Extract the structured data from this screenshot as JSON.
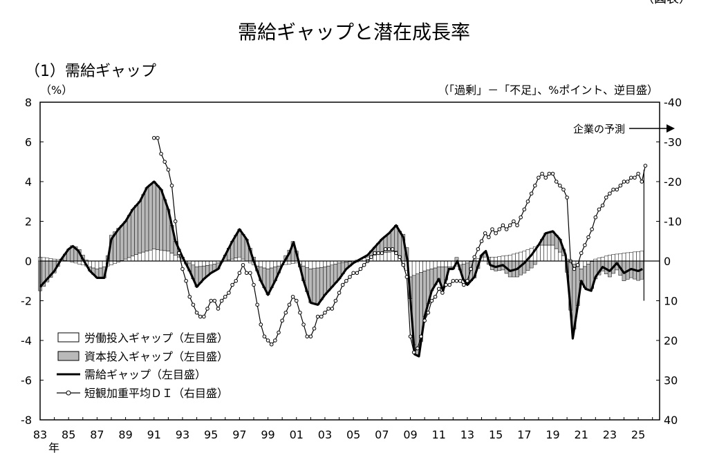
{
  "corner_label": "（図表）",
  "title": "需給ギャップと潜在成長率",
  "chart_data": {
    "type": "bar",
    "panel_title": "（1）需給ギャップ",
    "left_unit": "（%）",
    "right_unit": "（「過剰」－「不足」、%ポイント、逆目盛）",
    "forecast_note": "企業の予測",
    "year_suffix": "年",
    "xlim": [
      1983,
      2026.5
    ],
    "ylim_left": [
      -8,
      8
    ],
    "ylim_right": [
      -40,
      40
    ],
    "right_axis_inverted": true,
    "yticks_left": [
      "8",
      "6",
      "4",
      "2",
      "0",
      "-2",
      "-4",
      "-6",
      "-8"
    ],
    "yticks_right": [
      "-40",
      "-30",
      "-20",
      "-10",
      "0",
      "10",
      "20",
      "30",
      "40"
    ],
    "xtick_labels": [
      "83",
      "85",
      "87",
      "89",
      "91",
      "93",
      "95",
      "97",
      "99",
      "01",
      "03",
      "05",
      "07",
      "09",
      "11",
      "13",
      "15",
      "17",
      "19",
      "21",
      "23",
      "25"
    ],
    "legend": [
      {
        "label": "労働投入ギャップ（左目盛）",
        "kind": "bar-white"
      },
      {
        "label": "資本投入ギャップ（左目盛）",
        "kind": "bar-gray"
      },
      {
        "label": "需給ギャップ（左目盛）",
        "kind": "line-thick"
      },
      {
        "label": "短観加重平均ＤＩ（右目盛）",
        "kind": "line-marker"
      }
    ],
    "colors": {
      "labor": "#ffffff",
      "capital": "#b9b9b9",
      "line": "#000000"
    },
    "gap_knots": [
      [
        1983,
        -1.3
      ],
      [
        1983.5,
        -0.9
      ],
      [
        1984,
        -0.5
      ],
      [
        1984.5,
        0.1
      ],
      [
        1985,
        0.6
      ],
      [
        1985.3,
        0.75
      ],
      [
        1985.7,
        0.5
      ],
      [
        1986,
        0.1
      ],
      [
        1986.5,
        -0.5
      ],
      [
        1987,
        -0.85
      ],
      [
        1987.5,
        -0.85
      ],
      [
        1987.7,
        -0.2
      ],
      [
        1988,
        1.1
      ],
      [
        1988.5,
        1.6
      ],
      [
        1989,
        2.0
      ],
      [
        1989.5,
        2.6
      ],
      [
        1990,
        3.0
      ],
      [
        1990.5,
        3.7
      ],
      [
        1991,
        4.0
      ],
      [
        1991.5,
        3.6
      ],
      [
        1992,
        2.6
      ],
      [
        1992.5,
        1.0
      ],
      [
        1993,
        0.2
      ],
      [
        1993.5,
        -0.5
      ],
      [
        1994,
        -1.3
      ],
      [
        1994.5,
        -0.9
      ],
      [
        1995,
        -0.6
      ],
      [
        1995.5,
        -0.4
      ],
      [
        1996,
        0.3
      ],
      [
        1996.5,
        1.0
      ],
      [
        1997,
        1.6
      ],
      [
        1997.5,
        1.1
      ],
      [
        1998,
        0.0
      ],
      [
        1998.5,
        -1.0
      ],
      [
        1999,
        -1.7
      ],
      [
        1999.5,
        -1.0
      ],
      [
        2000,
        -0.2
      ],
      [
        2000.5,
        0.4
      ],
      [
        2000.8,
        0.95
      ],
      [
        2001,
        0.4
      ],
      [
        2001.5,
        -1.0
      ],
      [
        2002,
        -2.1
      ],
      [
        2002.5,
        -2.2
      ],
      [
        2003,
        -1.7
      ],
      [
        2003.5,
        -1.3
      ],
      [
        2004,
        -0.9
      ],
      [
        2004.5,
        -0.4
      ],
      [
        2005,
        -0.1
      ],
      [
        2005.5,
        0.1
      ],
      [
        2006,
        0.3
      ],
      [
        2006.5,
        0.7
      ],
      [
        2007,
        1.1
      ],
      [
        2007.5,
        1.4
      ],
      [
        2008,
        1.8
      ],
      [
        2008.5,
        1.2
      ],
      [
        2008.8,
        0.0
      ],
      [
        2009,
        -1.9
      ],
      [
        2009.3,
        -4.7
      ],
      [
        2009.6,
        -4.8
      ],
      [
        2010,
        -2.8
      ],
      [
        2010.5,
        -1.5
      ],
      [
        2011,
        -0.9
      ],
      [
        2011.3,
        -1.5
      ],
      [
        2011.7,
        -0.4
      ],
      [
        2012,
        -0.4
      ],
      [
        2012.3,
        0.0
      ],
      [
        2012.7,
        -0.9
      ],
      [
        2013,
        -1.2
      ],
      [
        2013.5,
        -0.8
      ],
      [
        2014,
        0.3
      ],
      [
        2014.3,
        0.5
      ],
      [
        2014.6,
        -0.2
      ],
      [
        2015,
        -0.3
      ],
      [
        2015.5,
        -0.2
      ],
      [
        2016,
        -0.5
      ],
      [
        2016.5,
        -0.4
      ],
      [
        2017,
        -0.1
      ],
      [
        2017.5,
        0.3
      ],
      [
        2018,
        0.8
      ],
      [
        2018.5,
        1.4
      ],
      [
        2019,
        1.5
      ],
      [
        2019.5,
        1.1
      ],
      [
        2019.9,
        0.3
      ],
      [
        2020.2,
        -2.0
      ],
      [
        2020.4,
        -3.9
      ],
      [
        2020.7,
        -2.5
      ],
      [
        2021,
        -1.0
      ],
      [
        2021.3,
        -1.4
      ],
      [
        2021.7,
        -1.5
      ],
      [
        2022,
        -0.8
      ],
      [
        2022.5,
        -0.3
      ],
      [
        2023,
        -0.5
      ],
      [
        2023.5,
        -0.1
      ],
      [
        2024,
        -0.6
      ],
      [
        2024.5,
        -0.4
      ],
      [
        2025,
        -0.5
      ],
      [
        2025.3,
        -0.4
      ]
    ],
    "labor_knots": [
      [
        1983,
        0.2
      ],
      [
        1984,
        0.1
      ],
      [
        1985,
        0.0
      ],
      [
        1986,
        -0.2
      ],
      [
        1987,
        -0.4
      ],
      [
        1988,
        -0.2
      ],
      [
        1989,
        0.1
      ],
      [
        1990,
        0.4
      ],
      [
        1991,
        0.6
      ],
      [
        1992,
        0.5
      ],
      [
        1993,
        0.1
      ],
      [
        1994,
        -0.3
      ],
      [
        1995,
        -0.2
      ],
      [
        1996,
        0.0
      ],
      [
        1997,
        0.2
      ],
      [
        1998,
        -0.2
      ],
      [
        1999,
        -0.4
      ],
      [
        2000,
        -0.2
      ],
      [
        2001,
        -0.1
      ],
      [
        2002,
        -0.4
      ],
      [
        2003,
        -0.3
      ],
      [
        2004,
        -0.1
      ],
      [
        2005,
        0.0
      ],
      [
        2006,
        0.2
      ],
      [
        2007,
        0.4
      ],
      [
        2008,
        0.5
      ],
      [
        2009,
        -0.8
      ],
      [
        2010,
        -0.5
      ],
      [
        2011,
        -0.3
      ],
      [
        2012,
        -0.3
      ],
      [
        2013,
        -0.1
      ],
      [
        2014,
        0.2
      ],
      [
        2015,
        0.2
      ],
      [
        2016,
        0.3
      ],
      [
        2017,
        0.5
      ],
      [
        2018,
        0.8
      ],
      [
        2019,
        0.8
      ],
      [
        2020,
        0.1
      ],
      [
        2021,
        -0.4
      ],
      [
        2022,
        0.1
      ],
      [
        2023,
        0.3
      ],
      [
        2024,
        0.4
      ],
      [
        2025.3,
        0.5
      ]
    ],
    "tankan_di": [
      [
        1991.0,
        -31
      ],
      [
        1991.25,
        -31
      ],
      [
        1991.5,
        -27
      ],
      [
        1991.75,
        -25
      ],
      [
        1992.0,
        -23
      ],
      [
        1992.25,
        -19
      ],
      [
        1992.5,
        -10
      ],
      [
        1992.75,
        -2
      ],
      [
        1993.0,
        2
      ],
      [
        1993.25,
        5
      ],
      [
        1993.5,
        9
      ],
      [
        1993.75,
        11
      ],
      [
        1994.0,
        13
      ],
      [
        1994.25,
        14
      ],
      [
        1994.5,
        14
      ],
      [
        1994.75,
        12
      ],
      [
        1995.0,
        10
      ],
      [
        1995.25,
        10
      ],
      [
        1995.5,
        12
      ],
      [
        1995.75,
        10
      ],
      [
        1996.0,
        9
      ],
      [
        1996.25,
        8
      ],
      [
        1996.5,
        6
      ],
      [
        1996.75,
        5
      ],
      [
        1997.0,
        3
      ],
      [
        1997.25,
        1
      ],
      [
        1997.5,
        3
      ],
      [
        1997.75,
        3
      ],
      [
        1998.0,
        6
      ],
      [
        1998.25,
        11
      ],
      [
        1998.5,
        16
      ],
      [
        1998.75,
        19
      ],
      [
        1999.0,
        20
      ],
      [
        1999.25,
        21
      ],
      [
        1999.5,
        20
      ],
      [
        1999.75,
        18
      ],
      [
        2000.0,
        15
      ],
      [
        2000.25,
        13
      ],
      [
        2000.5,
        11
      ],
      [
        2000.75,
        9
      ],
      [
        2001.0,
        10
      ],
      [
        2001.25,
        13
      ],
      [
        2001.5,
        16
      ],
      [
        2001.75,
        19
      ],
      [
        2002.0,
        19
      ],
      [
        2002.25,
        17
      ],
      [
        2002.5,
        14
      ],
      [
        2002.75,
        14
      ],
      [
        2003.0,
        13
      ],
      [
        2003.25,
        12
      ],
      [
        2003.5,
        12
      ],
      [
        2003.75,
        10
      ],
      [
        2004.0,
        8
      ],
      [
        2004.25,
        6
      ],
      [
        2004.5,
        5
      ],
      [
        2004.75,
        4
      ],
      [
        2005.0,
        3
      ],
      [
        2005.25,
        3
      ],
      [
        2005.5,
        2
      ],
      [
        2005.75,
        1
      ],
      [
        2006.0,
        0
      ],
      [
        2006.25,
        -1
      ],
      [
        2006.5,
        -2
      ],
      [
        2006.75,
        -2
      ],
      [
        2007.0,
        -2
      ],
      [
        2007.25,
        -3
      ],
      [
        2007.5,
        -3
      ],
      [
        2007.75,
        -3
      ],
      [
        2008.0,
        -2
      ],
      [
        2008.25,
        -1
      ],
      [
        2008.5,
        1
      ],
      [
        2008.75,
        4
      ],
      [
        2009.0,
        19
      ],
      [
        2009.25,
        23
      ],
      [
        2009.5,
        22
      ],
      [
        2009.75,
        19
      ],
      [
        2010.0,
        15
      ],
      [
        2010.25,
        13
      ],
      [
        2010.5,
        10
      ],
      [
        2010.75,
        9
      ],
      [
        2011.0,
        7
      ],
      [
        2011.25,
        8
      ],
      [
        2011.5,
        6
      ],
      [
        2011.75,
        6
      ],
      [
        2012.0,
        5
      ],
      [
        2012.25,
        5
      ],
      [
        2012.5,
        5
      ],
      [
        2012.75,
        6
      ],
      [
        2013.0,
        5
      ],
      [
        2013.25,
        2
      ],
      [
        2013.5,
        -1
      ],
      [
        2013.75,
        -3
      ],
      [
        2014.0,
        -5
      ],
      [
        2014.25,
        -7
      ],
      [
        2014.5,
        -6
      ],
      [
        2014.75,
        -8
      ],
      [
        2015.0,
        -7
      ],
      [
        2015.25,
        -8
      ],
      [
        2015.5,
        -9
      ],
      [
        2015.75,
        -8
      ],
      [
        2016.0,
        -9
      ],
      [
        2016.25,
        -10
      ],
      [
        2016.5,
        -9
      ],
      [
        2016.75,
        -11
      ],
      [
        2017.0,
        -13
      ],
      [
        2017.25,
        -15
      ],
      [
        2017.5,
        -17
      ],
      [
        2017.75,
        -19
      ],
      [
        2018.0,
        -21
      ],
      [
        2018.25,
        -22
      ],
      [
        2018.5,
        -21
      ],
      [
        2018.75,
        -22
      ],
      [
        2019.0,
        -22
      ],
      [
        2019.25,
        -20
      ],
      [
        2019.5,
        -19
      ],
      [
        2019.75,
        -18
      ],
      [
        2020.0,
        -16
      ],
      [
        2020.25,
        0
      ],
      [
        2020.5,
        2
      ],
      [
        2020.75,
        1
      ],
      [
        2021.0,
        -2
      ],
      [
        2021.25,
        -4
      ],
      [
        2021.5,
        -6
      ],
      [
        2021.75,
        -8
      ],
      [
        2022.0,
        -11
      ],
      [
        2022.25,
        -13
      ],
      [
        2022.5,
        -14
      ],
      [
        2022.75,
        -16
      ],
      [
        2023.0,
        -17
      ],
      [
        2023.25,
        -18
      ],
      [
        2023.5,
        -18
      ],
      [
        2023.75,
        -19
      ],
      [
        2024.0,
        -20
      ],
      [
        2024.25,
        -20
      ],
      [
        2024.5,
        -21
      ],
      [
        2024.75,
        -21
      ],
      [
        2025.0,
        -22
      ],
      [
        2025.25,
        -20
      ],
      [
        2025.5,
        -24
      ]
    ],
    "forecast_marker_year": 2025.4
  }
}
